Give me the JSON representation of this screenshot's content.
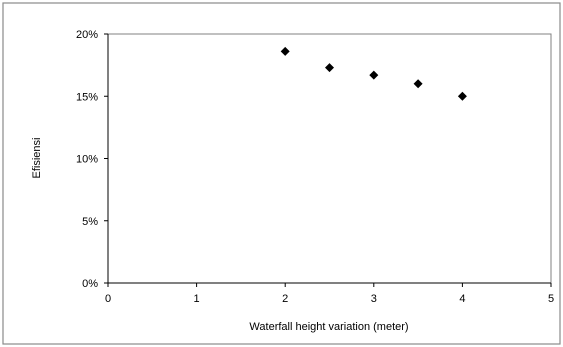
{
  "chart_data": {
    "type": "scatter",
    "title": "",
    "xlabel": "Waterfall height variation (meter)",
    "ylabel": "Efisiensi",
    "xlim": [
      0,
      5
    ],
    "ylim": [
      0,
      20
    ],
    "x_ticks": [
      "0",
      "1",
      "2",
      "3",
      "4",
      "5"
    ],
    "y_ticks": [
      "0%",
      "5%",
      "10%",
      "15%",
      "20%"
    ],
    "grid": false,
    "legend": "none",
    "marker": "diamond",
    "marker_color": "#000000",
    "series": [
      {
        "x": [
          2,
          2.5,
          3,
          3.5,
          4
        ],
        "y": [
          18.6,
          17.3,
          16.7,
          16.0,
          15.0
        ]
      }
    ]
  }
}
